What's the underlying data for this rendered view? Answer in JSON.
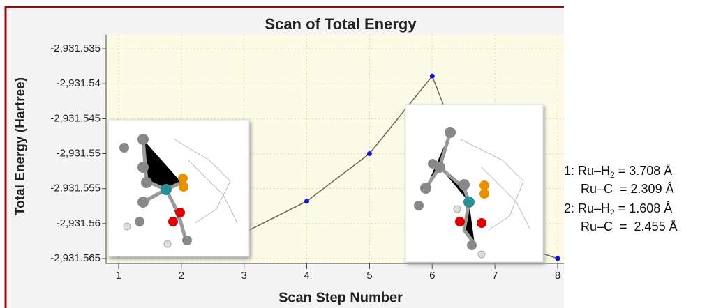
{
  "chart_data": {
    "type": "line",
    "title": "Scan of Total Energy",
    "x_label": "Scan Step Number",
    "y_label": "Total Energy (Hartree)",
    "x": [
      1,
      2,
      3,
      4,
      5,
      6,
      7,
      8
    ],
    "series": [
      {
        "name": "Total Energy",
        "color": "#1010e0",
        "line_color": "#666666",
        "values": [
          -2931.5645,
          -2931.5632,
          -2931.5613,
          -2931.5568,
          -2931.55,
          -2931.5389,
          -2931.562,
          -2931.565
        ]
      }
    ],
    "xlim": [
      0.8,
      8.1
    ],
    "ylim": [
      -2931.5657,
      -2931.533
    ],
    "xticks": [
      1,
      2,
      3,
      4,
      5,
      6,
      7,
      8
    ],
    "yticks": [
      {
        "value": -2931.565,
        "label": "-2,931.565"
      },
      {
        "value": -2931.56,
        "label": "-2,931.56"
      },
      {
        "value": -2931.555,
        "label": "-2,931.555"
      },
      {
        "value": -2931.55,
        "label": "-2,931.55"
      },
      {
        "value": -2931.545,
        "label": "-2,931.545"
      },
      {
        "value": -2931.54,
        "label": "-2,931.54"
      },
      {
        "value": -2931.535,
        "label": "-2,931.535"
      }
    ],
    "grid": true,
    "annotations": [
      {
        "label": "1: Ru–H",
        "sub": "2",
        "rest": " = 3.708 Å"
      },
      {
        "label": "Ru–C  = 2.309 Å"
      },
      {
        "label": "2: Ru–H",
        "sub": "2",
        "rest": " = 1.608 Å"
      },
      {
        "label": "Ru–C  =  2.455 Å"
      }
    ]
  }
}
